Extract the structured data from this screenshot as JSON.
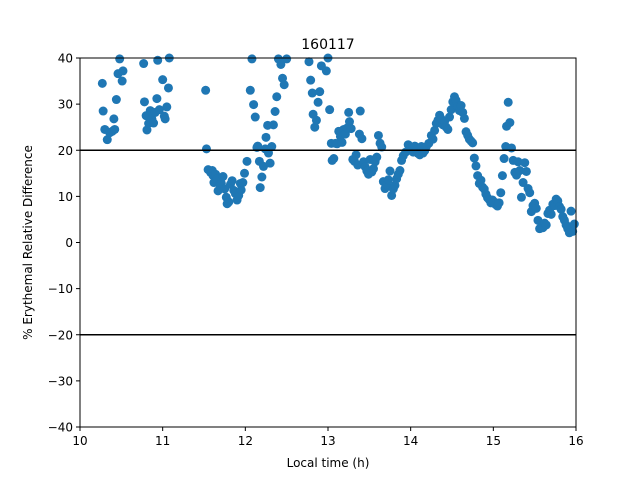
{
  "chart_data": {
    "type": "scatter",
    "title": "160117",
    "xlabel": "Local time (h)",
    "ylabel": "% Erythemal Relative Difference",
    "xlim": [
      10,
      16
    ],
    "ylim": [
      -40,
      40
    ],
    "xticks": [
      "10",
      "11",
      "12",
      "13",
      "14",
      "15",
      "16"
    ],
    "yticks": [
      "−40",
      "−30",
      "−20",
      "−10",
      "0",
      "10",
      "20",
      "30",
      "40"
    ],
    "grid": false,
    "reference_lines": [
      20,
      -20
    ],
    "point_color": "#1f77b4",
    "line_color": "#000000",
    "series": [
      {
        "points": [
          [
            10.27,
            34.5
          ],
          [
            10.28,
            28.5
          ],
          [
            10.3,
            24.5
          ],
          [
            10.33,
            22.3
          ],
          [
            10.36,
            23.8
          ],
          [
            10.39,
            24.1
          ],
          [
            10.41,
            26.8
          ],
          [
            10.42,
            24.5
          ],
          [
            10.44,
            31.0
          ],
          [
            10.46,
            36.6
          ],
          [
            10.48,
            39.8
          ],
          [
            10.52,
            37.2
          ],
          [
            10.51,
            35.0
          ],
          [
            10.77,
            38.8
          ],
          [
            10.78,
            30.5
          ],
          [
            10.8,
            27.5
          ],
          [
            10.81,
            24.4
          ],
          [
            10.83,
            25.8
          ],
          [
            10.85,
            28.6
          ],
          [
            10.87,
            26.8
          ],
          [
            10.89,
            25.9
          ],
          [
            10.91,
            28.2
          ],
          [
            10.93,
            31.2
          ],
          [
            10.94,
            39.5
          ],
          [
            10.96,
            28.8
          ],
          [
            11.0,
            35.3
          ],
          [
            11.02,
            27.4
          ],
          [
            11.03,
            26.8
          ],
          [
            11.05,
            29.4
          ],
          [
            11.07,
            33.5
          ],
          [
            11.08,
            40.0
          ],
          [
            11.52,
            33.0
          ],
          [
            11.53,
            20.3
          ],
          [
            11.55,
            15.8
          ],
          [
            11.58,
            15.2
          ],
          [
            11.6,
            15.6
          ],
          [
            11.61,
            14.5
          ],
          [
            11.62,
            13.0
          ],
          [
            11.64,
            14.8
          ],
          [
            11.66,
            13.8
          ],
          [
            11.67,
            11.2
          ],
          [
            11.69,
            12.6
          ],
          [
            11.71,
            12.8
          ],
          [
            11.73,
            14.3
          ],
          [
            11.75,
            11.6
          ],
          [
            11.77,
            9.8
          ],
          [
            11.78,
            8.4
          ],
          [
            11.8,
            8.8
          ],
          [
            11.82,
            12.6
          ],
          [
            11.84,
            13.4
          ],
          [
            11.86,
            11.3
          ],
          [
            11.88,
            10.6
          ],
          [
            11.9,
            9.2
          ],
          [
            11.92,
            10.2
          ],
          [
            11.94,
            12.8
          ],
          [
            11.95,
            11.4
          ],
          [
            11.97,
            13.0
          ],
          [
            11.99,
            15.0
          ],
          [
            12.02,
            17.6
          ],
          [
            12.06,
            33.0
          ],
          [
            12.08,
            39.8
          ],
          [
            12.1,
            29.9
          ],
          [
            12.12,
            27.2
          ],
          [
            12.14,
            20.6
          ],
          [
            12.15,
            20.9
          ],
          [
            12.17,
            17.6
          ],
          [
            12.18,
            11.9
          ],
          [
            12.2,
            14.2
          ],
          [
            12.22,
            16.5
          ],
          [
            12.24,
            20.3
          ],
          [
            12.25,
            22.8
          ],
          [
            12.27,
            25.4
          ],
          [
            12.28,
            19.4
          ],
          [
            12.3,
            17.2
          ],
          [
            12.32,
            20.8
          ],
          [
            12.34,
            25.5
          ],
          [
            12.36,
            28.4
          ],
          [
            12.38,
            31.6
          ],
          [
            12.4,
            39.8
          ],
          [
            12.43,
            38.6
          ],
          [
            12.45,
            35.6
          ],
          [
            12.47,
            34.2
          ],
          [
            12.5,
            39.8
          ],
          [
            12.77,
            39.2
          ],
          [
            12.79,
            35.2
          ],
          [
            12.81,
            32.4
          ],
          [
            12.82,
            27.8
          ],
          [
            12.84,
            25.0
          ],
          [
            12.86,
            26.5
          ],
          [
            12.88,
            30.4
          ],
          [
            12.9,
            32.7
          ],
          [
            12.92,
            38.3
          ],
          [
            12.98,
            37.2
          ],
          [
            13.0,
            40.0
          ],
          [
            13.02,
            28.8
          ],
          [
            13.04,
            21.5
          ],
          [
            13.05,
            17.8
          ],
          [
            13.07,
            18.2
          ],
          [
            13.09,
            21.5
          ],
          [
            13.11,
            21.4
          ],
          [
            13.13,
            24.1
          ],
          [
            13.15,
            23.0
          ],
          [
            13.17,
            21.7
          ],
          [
            13.19,
            24.5
          ],
          [
            13.21,
            23.5
          ],
          [
            13.23,
            24.8
          ],
          [
            13.25,
            28.2
          ],
          [
            13.26,
            26.2
          ],
          [
            13.28,
            24.7
          ],
          [
            13.3,
            18.0
          ],
          [
            13.32,
            17.6
          ],
          [
            13.34,
            19.0
          ],
          [
            13.36,
            16.8
          ],
          [
            13.38,
            23.5
          ],
          [
            13.39,
            28.5
          ],
          [
            13.41,
            22.5
          ],
          [
            13.43,
            17.5
          ],
          [
            13.45,
            16.4
          ],
          [
            13.47,
            15.5
          ],
          [
            13.49,
            14.8
          ],
          [
            13.51,
            18.0
          ],
          [
            13.53,
            15.3
          ],
          [
            13.55,
            16.0
          ],
          [
            13.57,
            17.5
          ],
          [
            13.59,
            18.5
          ],
          [
            13.61,
            23.2
          ],
          [
            13.63,
            21.5
          ],
          [
            13.65,
            20.7
          ],
          [
            13.67,
            13.2
          ],
          [
            13.69,
            11.7
          ],
          [
            13.71,
            12.5
          ],
          [
            13.73,
            13.6
          ],
          [
            13.75,
            15.5
          ],
          [
            13.77,
            10.2
          ],
          [
            13.79,
            11.6
          ],
          [
            13.81,
            12.4
          ],
          [
            13.83,
            13.8
          ],
          [
            13.85,
            14.8
          ],
          [
            13.87,
            15.6
          ],
          [
            13.89,
            17.8
          ],
          [
            13.91,
            18.8
          ],
          [
            13.94,
            19.6
          ],
          [
            13.97,
            21.2
          ],
          [
            14.0,
            20.5
          ],
          [
            14.03,
            19.6
          ],
          [
            14.05,
            20.9
          ],
          [
            14.07,
            20.2
          ],
          [
            14.09,
            19.3
          ],
          [
            14.11,
            19.0
          ],
          [
            14.13,
            20.8
          ],
          [
            14.15,
            19.4
          ],
          [
            14.17,
            19.9
          ],
          [
            14.19,
            20.8
          ],
          [
            14.22,
            21.5
          ],
          [
            14.25,
            23.2
          ],
          [
            14.27,
            22.4
          ],
          [
            14.29,
            24.3
          ],
          [
            14.31,
            25.8
          ],
          [
            14.33,
            26.5
          ],
          [
            14.35,
            27.6
          ],
          [
            14.37,
            26.8
          ],
          [
            14.39,
            25.5
          ],
          [
            14.41,
            26.2
          ],
          [
            14.43,
            25.0
          ],
          [
            14.45,
            24.5
          ],
          [
            14.47,
            27.2
          ],
          [
            14.49,
            28.8
          ],
          [
            14.51,
            30.5
          ],
          [
            14.53,
            31.6
          ],
          [
            14.55,
            30.8
          ],
          [
            14.57,
            29.5
          ],
          [
            14.59,
            28.6
          ],
          [
            14.61,
            29.7
          ],
          [
            14.63,
            28.2
          ],
          [
            14.65,
            26.9
          ],
          [
            14.67,
            24.0
          ],
          [
            14.69,
            23.2
          ],
          [
            14.71,
            22.4
          ],
          [
            14.73,
            22.0
          ],
          [
            14.75,
            21.6
          ],
          [
            14.77,
            18.3
          ],
          [
            14.79,
            16.6
          ],
          [
            14.81,
            14.5
          ],
          [
            14.83,
            12.8
          ],
          [
            14.85,
            13.5
          ],
          [
            14.87,
            12.0
          ],
          [
            14.89,
            11.6
          ],
          [
            14.91,
            10.5
          ],
          [
            14.93,
            9.7
          ],
          [
            14.95,
            9.3
          ],
          [
            14.97,
            8.6
          ],
          [
            14.99,
            9.2
          ],
          [
            15.01,
            8.8
          ],
          [
            15.03,
            8.2
          ],
          [
            15.05,
            7.9
          ],
          [
            15.07,
            8.6
          ],
          [
            15.09,
            10.8
          ],
          [
            15.11,
            14.5
          ],
          [
            15.13,
            18.2
          ],
          [
            15.15,
            20.8
          ],
          [
            15.16,
            25.2
          ],
          [
            15.18,
            30.4
          ],
          [
            15.2,
            26.0
          ],
          [
            15.22,
            20.5
          ],
          [
            15.24,
            17.8
          ],
          [
            15.26,
            15.2
          ],
          [
            15.28,
            14.6
          ],
          [
            15.3,
            17.5
          ],
          [
            15.32,
            15.6
          ],
          [
            15.34,
            9.8
          ],
          [
            15.36,
            13.0
          ],
          [
            15.38,
            17.3
          ],
          [
            15.4,
            15.4
          ],
          [
            15.42,
            11.7
          ],
          [
            15.44,
            10.8
          ],
          [
            15.46,
            6.7
          ],
          [
            15.48,
            8.0
          ],
          [
            15.5,
            8.5
          ],
          [
            15.52,
            7.4
          ],
          [
            15.54,
            4.8
          ],
          [
            15.56,
            3.0
          ],
          [
            15.58,
            3.4
          ],
          [
            15.6,
            3.2
          ],
          [
            15.62,
            4.2
          ],
          [
            15.64,
            3.8
          ],
          [
            15.66,
            6.3
          ],
          [
            15.68,
            7.0
          ],
          [
            15.7,
            6.1
          ],
          [
            15.72,
            8.3
          ],
          [
            15.74,
            8.0
          ],
          [
            15.76,
            9.4
          ],
          [
            15.78,
            9.0
          ],
          [
            15.8,
            7.8
          ],
          [
            15.82,
            7.2
          ],
          [
            15.84,
            5.6
          ],
          [
            15.86,
            4.8
          ],
          [
            15.88,
            3.8
          ],
          [
            15.9,
            3.0
          ],
          [
            15.92,
            2.1
          ],
          [
            15.94,
            6.8
          ],
          [
            15.96,
            2.4
          ],
          [
            15.98,
            4.0
          ]
        ]
      }
    ]
  }
}
